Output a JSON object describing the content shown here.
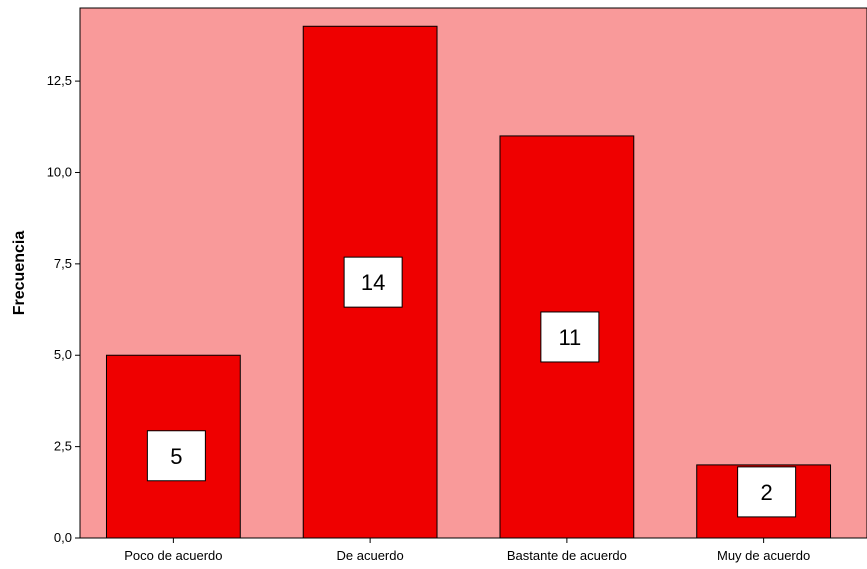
{
  "chart_data": {
    "type": "bar",
    "title": "",
    "xlabel": "",
    "ylabel": "Frecuencia",
    "categories": [
      "Poco de acuerdo",
      "De acuerdo",
      "Bastante de acuerdo",
      "Muy de acuerdo"
    ],
    "values": [
      5,
      14,
      11,
      2
    ],
    "data_labels": [
      "5",
      "14",
      "11",
      "2"
    ],
    "ylim": [
      0,
      14.5
    ],
    "yticks": [
      0,
      2.5,
      5,
      7.5,
      10,
      12.5
    ],
    "ytick_labels": [
      "0,0",
      "2,5",
      "5,0",
      "7,5",
      "10,0",
      "12,5"
    ],
    "grid": false,
    "legend": "none",
    "colors": {
      "plot_background": "#f99a9a",
      "bar_fill": "#ef0000",
      "bar_stroke": "#000000",
      "label_box": "#ffffff"
    }
  }
}
